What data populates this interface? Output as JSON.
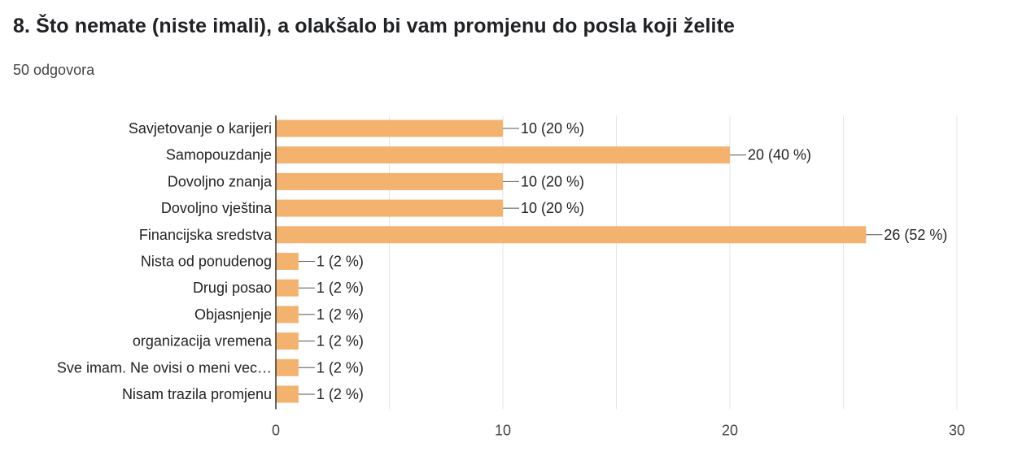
{
  "question": {
    "title": "8. Što nemate (niste imali), a olakšalo bi vam promjenu do posla koji želite",
    "response_count": "50 odgovora"
  },
  "colors": {
    "bar": "#f4b26f",
    "grid": "#e6e6e6",
    "axis": "#333333",
    "leader": "#555555"
  },
  "chart_data": {
    "type": "bar",
    "orientation": "horizontal",
    "categories": [
      "Savjetovanje o karijeri",
      "Samopouzdanje",
      "Dovoljno znanja",
      "Dovoljno vještina",
      "Financijska sredstva",
      "Nista od ponudenog",
      "Drugi posao",
      "Objasnjenje",
      "organizacija vremena",
      "Sve imam. Ne ovisi o meni vec…",
      "Nisam trazila promjenu"
    ],
    "values": [
      10,
      20,
      10,
      10,
      26,
      1,
      1,
      1,
      1,
      1,
      1
    ],
    "value_labels": [
      "10 (20 %)",
      "20 (40 %)",
      "10 (20 %)",
      "10 (20 %)",
      "26 (52 %)",
      "1 (2 %)",
      "1 (2 %)",
      "1 (2 %)",
      "1 (2 %)",
      "1 (2 %)",
      "1 (2 %)"
    ],
    "xlim": [
      0,
      30
    ],
    "xticks": [
      0,
      10,
      20,
      30
    ],
    "xtick_labels": [
      "0",
      "10",
      "20",
      "30"
    ],
    "grid": true,
    "legend": "none"
  }
}
